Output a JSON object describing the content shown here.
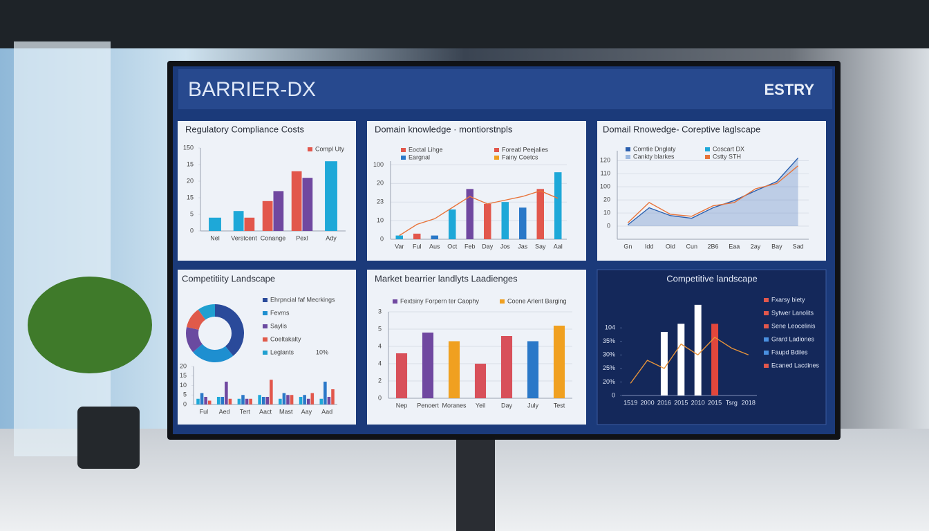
{
  "header": {
    "title": "BARRIER-DX",
    "brand": "ESTRY"
  },
  "chart_data": [
    {
      "type": "bar",
      "title": "Regulatory Compliance Costs",
      "categories": [
        "Nel",
        "Verstcent",
        "Conange",
        "Pexl",
        "Ady"
      ],
      "series": [
        {
          "color": "#1ea8d8",
          "values": [
            4,
            6,
            null,
            null,
            21
          ]
        },
        {
          "color": "#e2574c",
          "values": [
            null,
            4,
            9,
            18,
            null
          ]
        },
        {
          "color": "#7048a0",
          "values": [
            null,
            null,
            12,
            16,
            null
          ]
        }
      ],
      "legend": [
        {
          "name": "Compl Uty",
          "color": "#e2574c"
        }
      ],
      "ylim": [
        0,
        25
      ],
      "yticks": [
        0,
        5,
        {
          "value": 10,
          "label": "15"
        },
        {
          "value": 15,
          "label": "20"
        },
        {
          "value": 20,
          "label": "15"
        },
        {
          "value": 25,
          "label": "150"
        }
      ]
    },
    {
      "type": "bar",
      "title": "Domain knowledge · montiorstnpls",
      "categories": [
        "Var",
        "Ful",
        "Aus",
        "Oct",
        "Feb",
        "Day",
        "Jos",
        "Jas",
        "Say",
        "Aal"
      ],
      "series": [
        {
          "color": "#1ea8d8",
          "values": [
            2,
            null,
            null,
            16,
            null,
            null,
            20,
            null,
            null,
            36
          ]
        },
        {
          "color": "#e2574c",
          "values": [
            null,
            3,
            null,
            null,
            null,
            19,
            null,
            null,
            27,
            null
          ]
        },
        {
          "color": "#2a78c8",
          "values": [
            null,
            null,
            2,
            null,
            null,
            null,
            null,
            17,
            null,
            null
          ]
        },
        {
          "color": "#7048a0",
          "values": [
            null,
            null,
            null,
            null,
            27,
            null,
            null,
            null,
            null,
            null
          ]
        },
        {
          "color": "#e8743a",
          "kind": "line",
          "values": [
            2,
            8,
            11,
            17,
            23,
            19,
            21,
            23,
            26,
            22
          ]
        }
      ],
      "legend": [
        {
          "name": "Eoctal Lihge",
          "color": "#e2574c"
        },
        {
          "name": "Foreatl Peejalies",
          "color": "#e2574c"
        },
        {
          "name": "Eargnal",
          "color": "#2a78c8"
        },
        {
          "name": "Fainy Coetcs",
          "color": "#f0a020"
        }
      ],
      "ylim": [
        0,
        42
      ],
      "grid": true,
      "yticks": [
        0,
        10,
        {
          "value": 20,
          "label": "23"
        },
        {
          "value": 30,
          "label": "20"
        },
        {
          "value": 40,
          "label": "100"
        }
      ]
    },
    {
      "type": "line",
      "title": "Domail Rnowedge- Coreptive laglscape",
      "categories": [
        "Gn",
        "Idd",
        "Oid",
        "Cun",
        "2B6",
        "Eaa",
        "2ay",
        "Bay",
        "Sad"
      ],
      "series": [
        {
          "color": "#2a5fae",
          "area": true,
          "values": [
            2,
            28,
            16,
            12,
            28,
            39,
            54,
            68,
            104
          ]
        },
        {
          "color": "#e8743a",
          "values": [
            5,
            36,
            18,
            15,
            31,
            36,
            57,
            65,
            92
          ]
        }
      ],
      "legend": [
        {
          "name": "Comtie Dnglaty",
          "color": "#2a5fae"
        },
        {
          "name": "Coscart DX",
          "color": "#1ea8d8"
        },
        {
          "name": "Cankty blarkes",
          "color": "#9bb8e0"
        },
        {
          "name": "Cstty STH",
          "color": "#e8743a"
        }
      ],
      "ylim": [
        -20,
        115
      ],
      "grid": true,
      "yticks": [
        0,
        {
          "value": 20,
          "label": "10"
        },
        {
          "value": 40,
          "label": "20"
        },
        {
          "value": 60,
          "label": "100"
        },
        {
          "value": 80,
          "label": "110"
        },
        {
          "value": 100,
          "label": "120"
        }
      ]
    },
    {
      "type": "pie",
      "title": "Competitiity Landscape",
      "donut": true,
      "labels": [
        "Ehrpncial faf Mecrkings",
        "Fevrns",
        "Saylis",
        "Coeltakalty",
        "Leglants"
      ],
      "values": [
        40,
        25,
        15,
        12,
        10
      ],
      "value_labels": [
        null,
        null,
        null,
        null,
        "10%"
      ],
      "colors": [
        "#2a4a9a",
        "#1e8fd0",
        "#6a4aa0",
        "#e05a4a",
        "#20a0d0"
      ]
    },
    {
      "type": "bar",
      "categories": [
        "Ful",
        "Aed",
        "Tert",
        "Aact",
        "Mast",
        "Aay",
        "Aad"
      ],
      "series": [
        {
          "color": "#1ea8d8",
          "values": [
            3,
            4,
            3,
            5,
            3,
            4,
            3
          ]
        },
        {
          "color": "#2a78c8",
          "values": [
            6,
            4,
            5,
            4,
            6,
            5,
            12
          ]
        },
        {
          "color": "#7048a0",
          "values": [
            4,
            12,
            3,
            4,
            5,
            3,
            4
          ]
        },
        {
          "color": "#e2574c",
          "values": [
            2,
            3,
            3,
            13,
            5,
            6,
            8
          ]
        }
      ],
      "ylim": [
        0,
        20
      ],
      "yticks": [
        0,
        5,
        10,
        15,
        20
      ]
    },
    {
      "type": "bar",
      "title": "Market bearrier landlyts Laadienges",
      "categories": [
        "Nep",
        "Penoert",
        "Moranes",
        "Yeil",
        "Day",
        "July",
        "Test"
      ],
      "series": [
        {
          "color": "#d8505a",
          "values": [
            2.6,
            null,
            null,
            2,
            3.6,
            null,
            null
          ]
        },
        {
          "color": "#7048a0",
          "values": [
            null,
            3.8,
            null,
            null,
            null,
            null,
            null
          ]
        },
        {
          "color": "#f0a020",
          "values": [
            null,
            null,
            3.3,
            null,
            null,
            null,
            4.2
          ]
        },
        {
          "color": "#2a78c8",
          "values": [
            null,
            null,
            null,
            null,
            null,
            3.3,
            null
          ]
        }
      ],
      "legend": [
        {
          "name": "Fextsiny Forpern ter Caophy",
          "color": "#7048a0"
        },
        {
          "name": "Coone Arlent Barging",
          "color": "#f0a020"
        }
      ],
      "ylim": [
        0,
        5
      ],
      "grid": true,
      "yticks": [
        0,
        {
          "value": 1,
          "label": "2"
        },
        {
          "value": 2,
          "label": "4"
        },
        {
          "value": 3,
          "label": "4"
        },
        {
          "value": 4,
          "label": "5"
        },
        {
          "value": 5,
          "label": "3"
        }
      ]
    },
    {
      "type": "bar",
      "title": "Competitive landscape",
      "background": "#14285a",
      "categories": [
        "1519",
        "2000",
        "2016",
        "2015",
        "2010",
        "2015",
        "Tsrg",
        "2018"
      ],
      "series": [
        {
          "color": "#ffffff",
          "values": [
            null,
            null,
            47,
            53,
            67,
            null,
            null,
            null
          ]
        },
        {
          "color": "#e2473c",
          "values": [
            null,
            null,
            null,
            null,
            null,
            53,
            null,
            null
          ]
        },
        {
          "color": "#e8943a",
          "kind": "line",
          "values": [
            9,
            26,
            20,
            38,
            30,
            43,
            35,
            30
          ]
        }
      ],
      "legend": [
        {
          "name": "Fxarsy biety",
          "color": "#e2574c"
        },
        {
          "name": "Sytwer Lanolits",
          "color": "#e2574c"
        },
        {
          "name": "Sene Leocelinis",
          "color": "#e2574c"
        },
        {
          "name": "Grard Ladiones",
          "color": "#4a90e0"
        },
        {
          "name": "Faupd Bdiles",
          "color": "#4a90e0"
        },
        {
          "name": "Ecaned Lacdines",
          "color": "#e2574c"
        }
      ],
      "ylim": [
        0,
        70
      ],
      "yticks": [
        0,
        {
          "value": 10,
          "label": "20%"
        },
        {
          "value": 20,
          "label": "25%"
        },
        {
          "value": 30,
          "label": "30%"
        },
        {
          "value": 40,
          "label": "35%"
        },
        {
          "value": 50,
          "label": "104"
        }
      ]
    }
  ]
}
